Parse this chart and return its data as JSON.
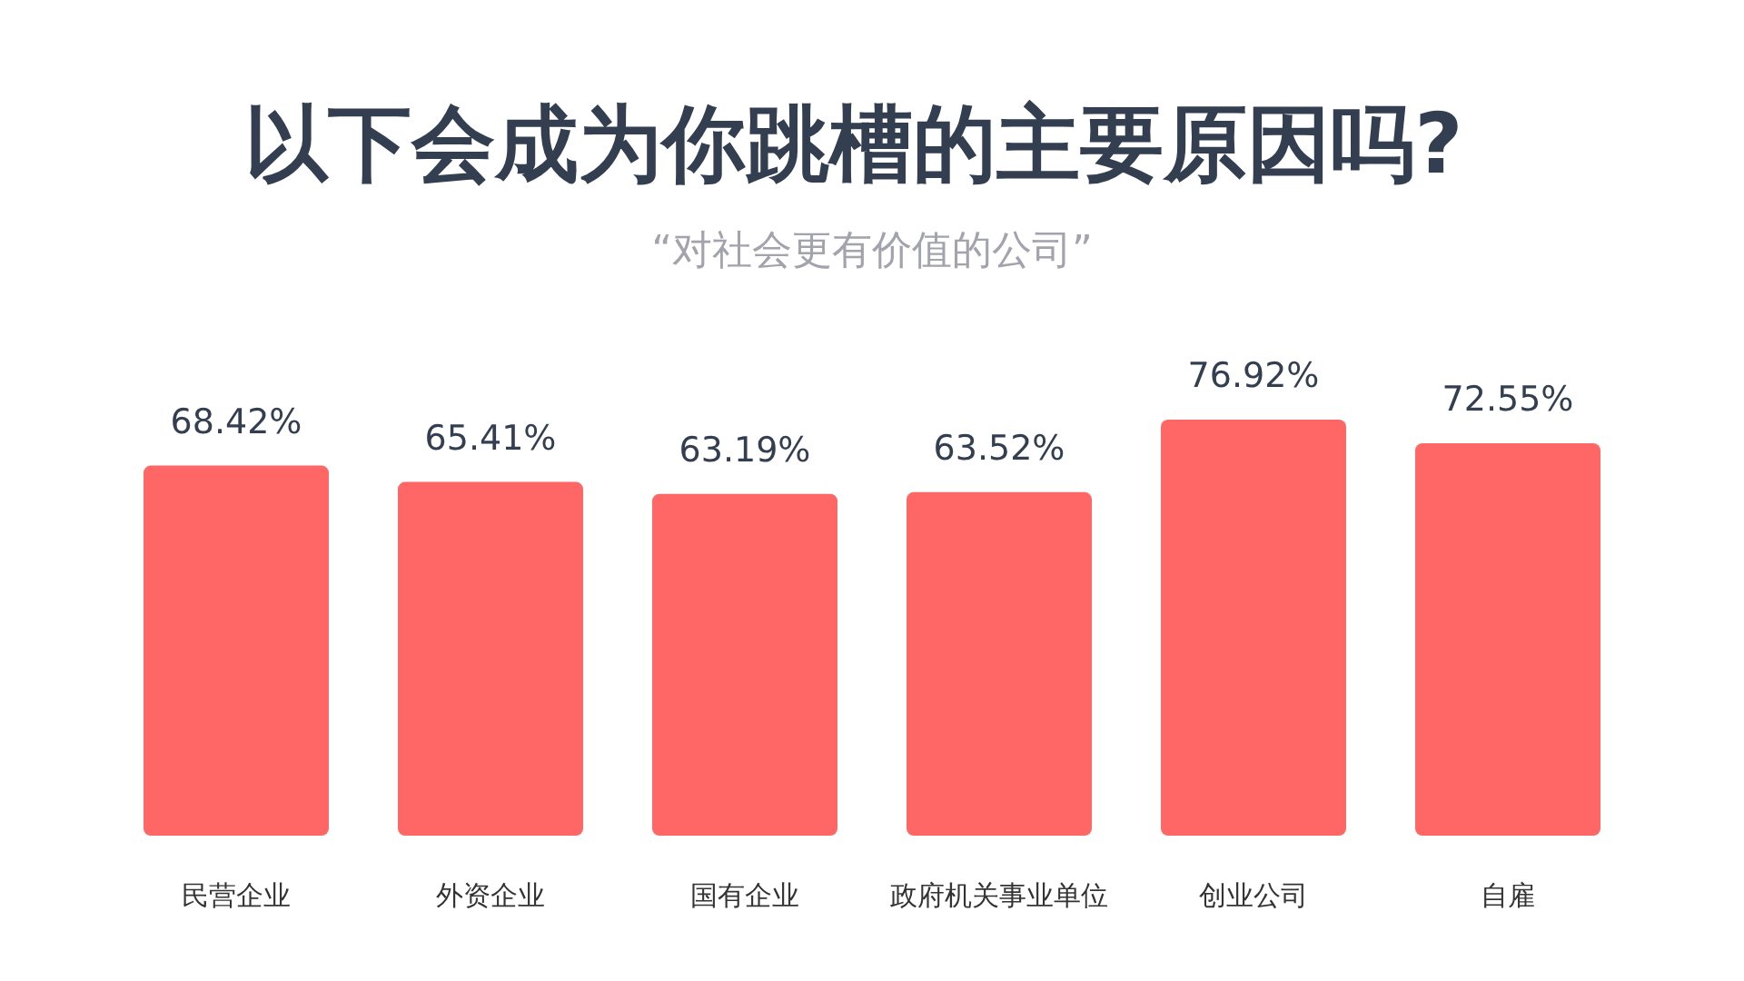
{
  "chart_data": {
    "type": "bar",
    "title": "以下会成为你跳槽的主要原因吗?",
    "subtitle": "“对社会更有价值的公司”",
    "categories": [
      "民营企业",
      "外资企业",
      "国有企业",
      "政府机关事业单位",
      "创业公司",
      "自雇"
    ],
    "values": [
      68.42,
      65.41,
      63.19,
      63.52,
      76.92,
      72.55
    ],
    "value_labels": [
      "68.42%",
      "65.41%",
      "63.19%",
      "63.52%",
      "76.92%",
      "72.55%"
    ],
    "color": "#ff6666"
  }
}
